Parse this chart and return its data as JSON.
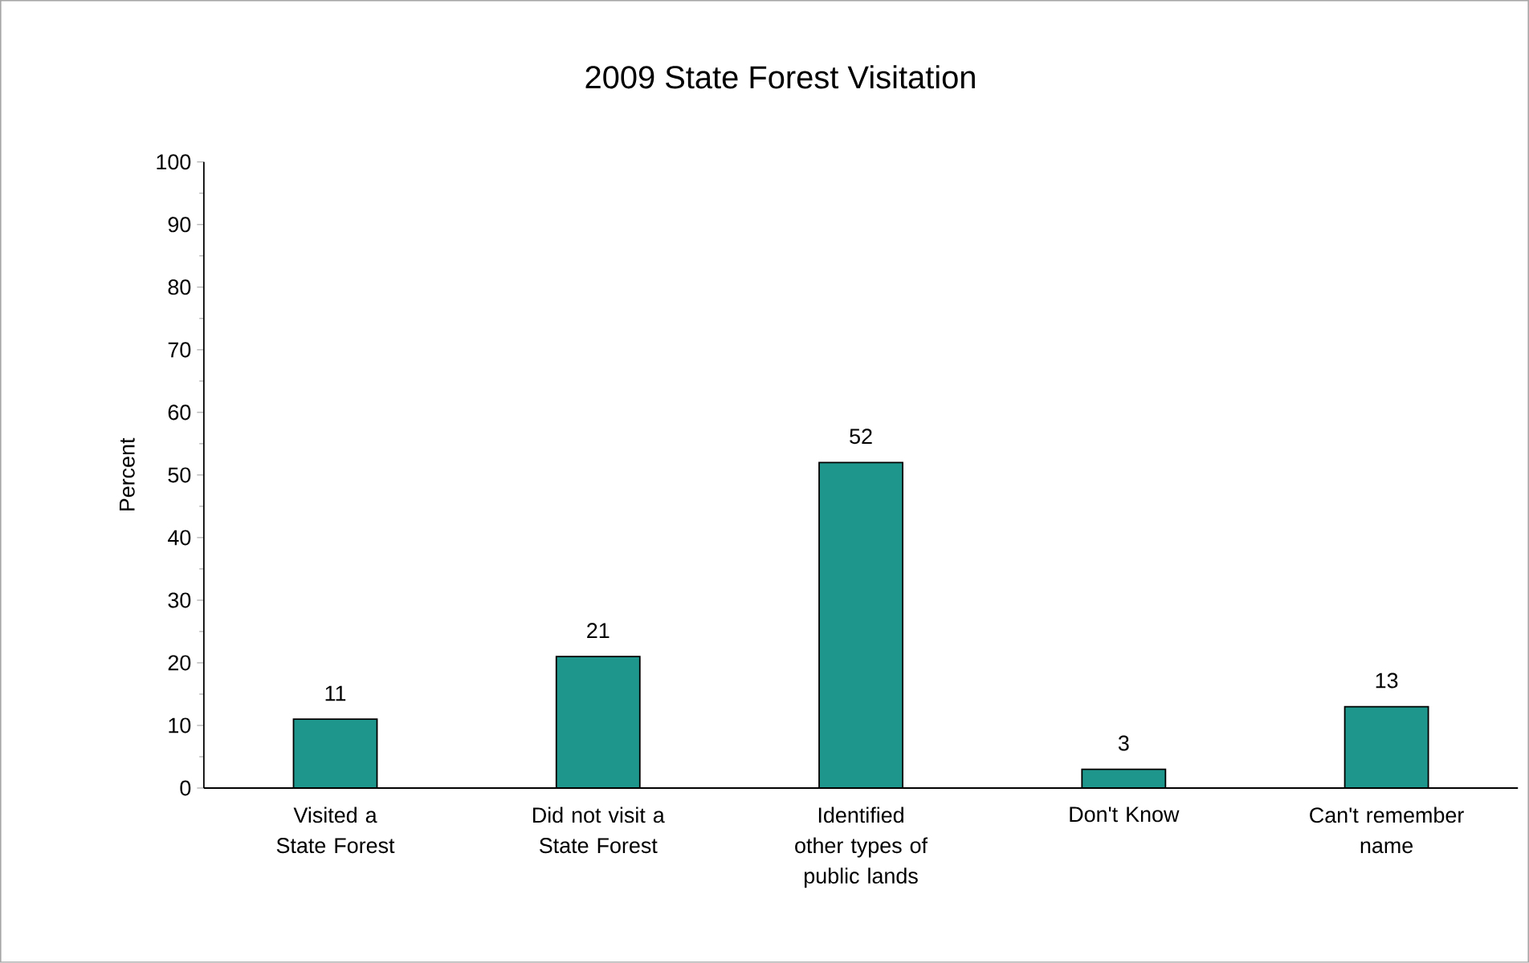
{
  "chart_data": {
    "type": "bar",
    "title": "2009 State Forest Visitation",
    "ylabel": "Percent",
    "categories": [
      "Visited a State Forest",
      "Did not visit a State Forest",
      "Identified other types of public lands",
      "Don't Know",
      "Can't remember name"
    ],
    "values": [
      11,
      21,
      52,
      3,
      13
    ],
    "color": "#1f968b",
    "data_labels": true,
    "ylim": [
      0,
      100
    ],
    "yticks": [
      0,
      10,
      20,
      30,
      40,
      50,
      60,
      70,
      80,
      90,
      100
    ],
    "grid": false
  }
}
